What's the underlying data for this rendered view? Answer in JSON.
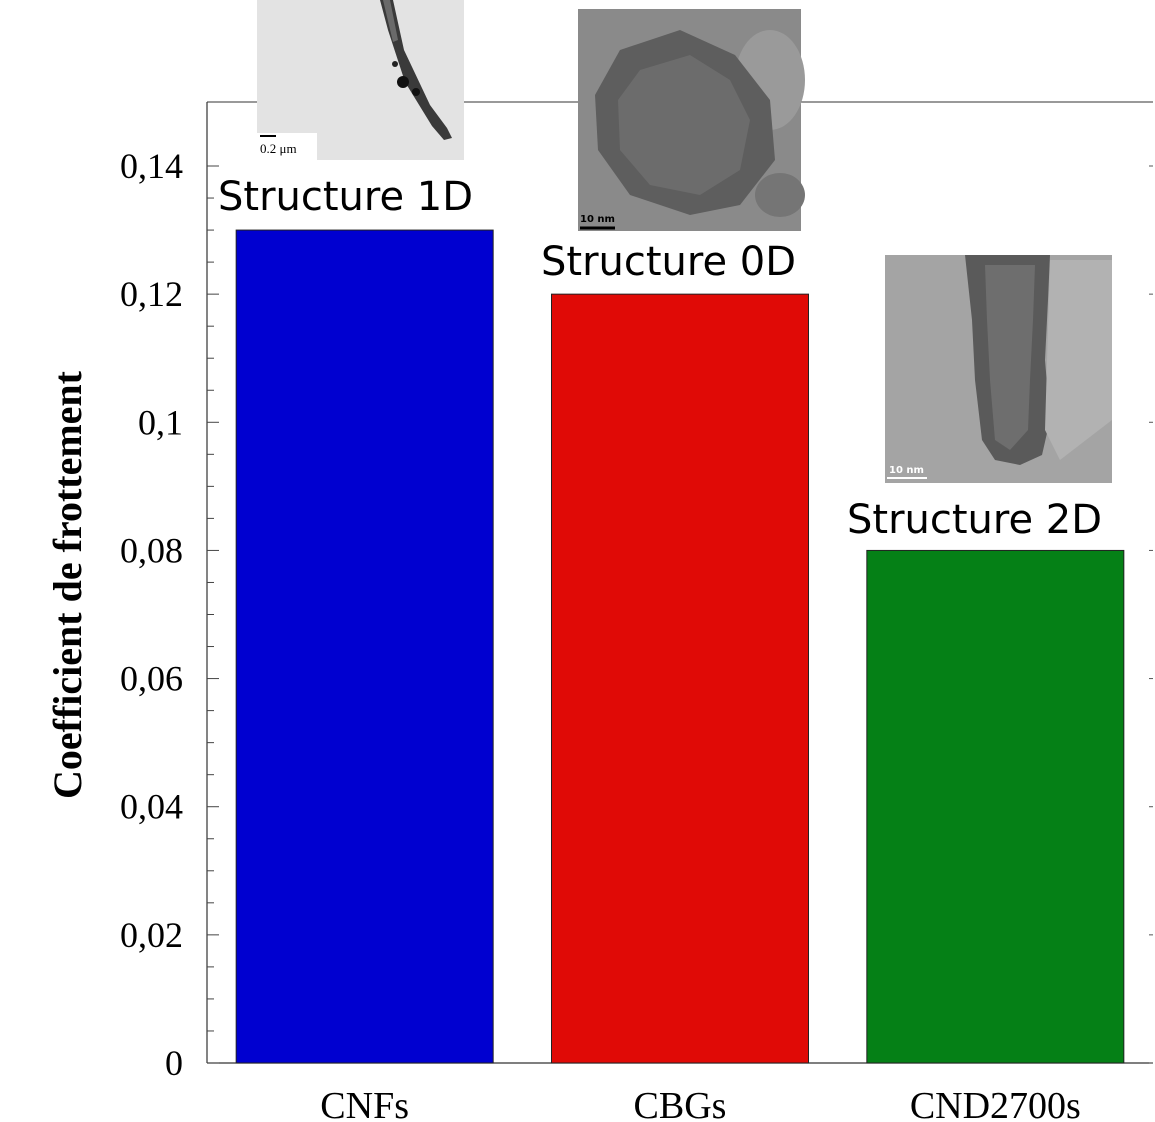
{
  "chart_data": {
    "type": "bar",
    "categories": [
      "CNFs",
      "CBGs",
      "CND2700s"
    ],
    "values": [
      0.13,
      0.12,
      0.08
    ],
    "colors": [
      "#0000d0",
      "#e00a06",
      "#058016"
    ],
    "title": "",
    "xlabel": "",
    "ylabel": "Coefficient de frottement",
    "ylim": [
      0,
      0.15
    ],
    "yticks": [
      "0",
      "0,02",
      "0,04",
      "0,06",
      "0,08",
      "0,1",
      "0,12",
      "0,14"
    ],
    "grid": false,
    "annotations": [
      "Structure 1D",
      "Structure 0D",
      "Structure 2D"
    ]
  },
  "insets": [
    {
      "scale_label": "0.2 μm"
    },
    {
      "scale_label": "10 nm"
    },
    {
      "scale_label": "10 nm"
    }
  ]
}
